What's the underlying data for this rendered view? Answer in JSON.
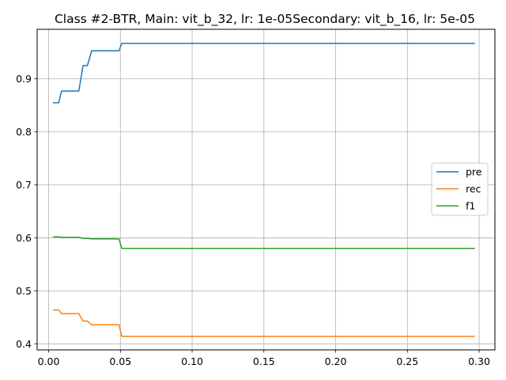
{
  "chart_data": {
    "type": "line",
    "title": "Class #2-BTR, Main: vit_b_32, lr: 1e-05Secondary: vit_b_16, lr: 5e-05",
    "xlabel": "",
    "ylabel": "",
    "xlim": [
      -0.008,
      0.311
    ],
    "ylim": [
      0.3885,
      0.9935
    ],
    "grid": true,
    "legend_position": "center-right",
    "xticks": [
      {
        "value": 0.0,
        "label": "0.00"
      },
      {
        "value": 0.05,
        "label": "0.05"
      },
      {
        "value": 0.1,
        "label": "0.10"
      },
      {
        "value": 0.15,
        "label": "0.15"
      },
      {
        "value": 0.2,
        "label": "0.20"
      },
      {
        "value": 0.25,
        "label": "0.25"
      },
      {
        "value": 0.3,
        "label": "0.30"
      }
    ],
    "yticks": [
      {
        "value": 0.4,
        "label": "0.4"
      },
      {
        "value": 0.5,
        "label": "0.5"
      },
      {
        "value": 0.6,
        "label": "0.6"
      },
      {
        "value": 0.7,
        "label": "0.7"
      },
      {
        "value": 0.8,
        "label": "0.8"
      },
      {
        "value": 0.9,
        "label": "0.9"
      }
    ],
    "series": [
      {
        "name": "pre",
        "color": "#1f77b4",
        "points": [
          [
            0.003,
            0.855
          ],
          [
            0.007,
            0.855
          ],
          [
            0.009,
            0.877
          ],
          [
            0.02,
            0.877
          ],
          [
            0.021,
            0.877
          ],
          [
            0.024,
            0.925
          ],
          [
            0.027,
            0.925
          ],
          [
            0.03,
            0.953
          ],
          [
            0.045,
            0.953
          ],
          [
            0.049,
            0.953
          ],
          [
            0.051,
            0.967
          ],
          [
            0.297,
            0.967
          ]
        ]
      },
      {
        "name": "rec",
        "color": "#ff7f0e",
        "points": [
          [
            0.003,
            0.464
          ],
          [
            0.007,
            0.464
          ],
          [
            0.009,
            0.457
          ],
          [
            0.02,
            0.457
          ],
          [
            0.021,
            0.457
          ],
          [
            0.024,
            0.443
          ],
          [
            0.027,
            0.443
          ],
          [
            0.03,
            0.436
          ],
          [
            0.045,
            0.436
          ],
          [
            0.049,
            0.436
          ],
          [
            0.051,
            0.414
          ],
          [
            0.297,
            0.414
          ]
        ]
      },
      {
        "name": "f1",
        "color": "#2ca02c",
        "points": [
          [
            0.003,
            0.602
          ],
          [
            0.007,
            0.602
          ],
          [
            0.009,
            0.601
          ],
          [
            0.02,
            0.601
          ],
          [
            0.021,
            0.601
          ],
          [
            0.024,
            0.599
          ],
          [
            0.027,
            0.599
          ],
          [
            0.03,
            0.598
          ],
          [
            0.045,
            0.598
          ],
          [
            0.049,
            0.598
          ],
          [
            0.051,
            0.58
          ],
          [
            0.297,
            0.58
          ]
        ]
      }
    ]
  }
}
